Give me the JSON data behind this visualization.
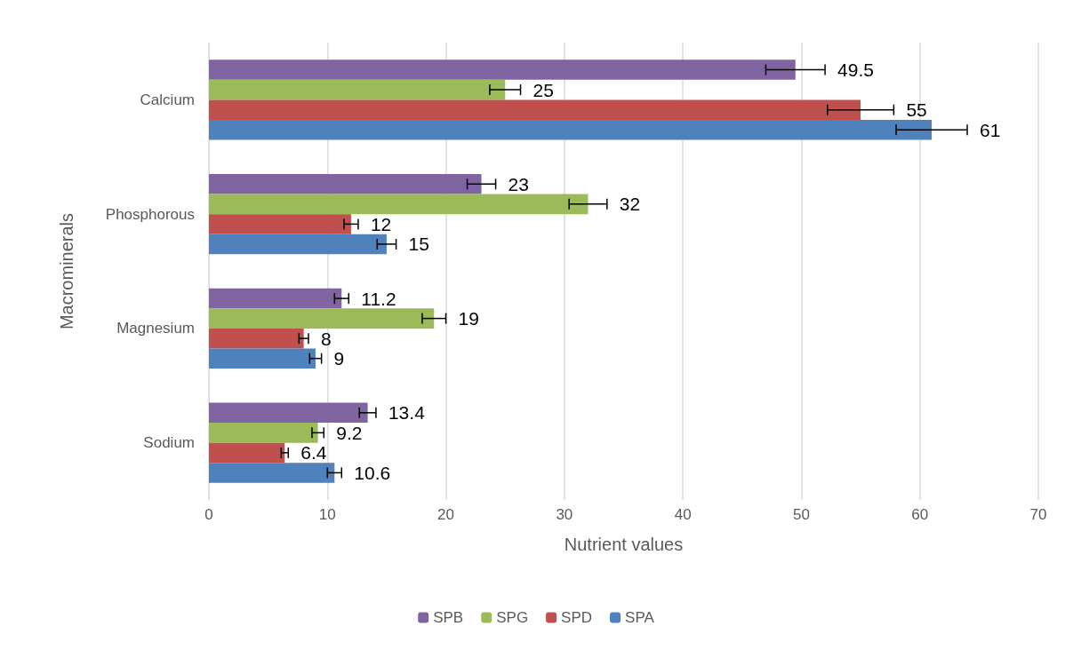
{
  "chart_data": {
    "type": "bar",
    "orientation": "horizontal",
    "xlabel": "Nutrient values",
    "ylabel": "Macrominerals",
    "categories": [
      "Calcium",
      "Phosphorous",
      "Magnesium",
      "Sodium"
    ],
    "series": [
      {
        "name": "SPB",
        "color": "#8064a2",
        "values": [
          49.5,
          23,
          11.2,
          13.4
        ],
        "errors": [
          2.5,
          1.2,
          0.6,
          0.7
        ]
      },
      {
        "name": "SPG",
        "color": "#9bbb59",
        "values": [
          25,
          32,
          19,
          9.2
        ],
        "errors": [
          1.3,
          1.6,
          1.0,
          0.5
        ]
      },
      {
        "name": "SPD",
        "color": "#c0504d",
        "values": [
          55,
          12,
          8,
          6.4
        ],
        "errors": [
          2.8,
          0.6,
          0.4,
          0.3
        ]
      },
      {
        "name": "SPA",
        "color": "#4f81bd",
        "values": [
          61,
          15,
          9,
          10.6
        ],
        "errors": [
          3.0,
          0.8,
          0.5,
          0.6
        ]
      }
    ],
    "xlim": [
      0,
      70
    ],
    "xticks": [
      0,
      10,
      20,
      30,
      40,
      50,
      60,
      70
    ],
    "grid": "x",
    "legend": "bottom",
    "data_labels": true
  }
}
